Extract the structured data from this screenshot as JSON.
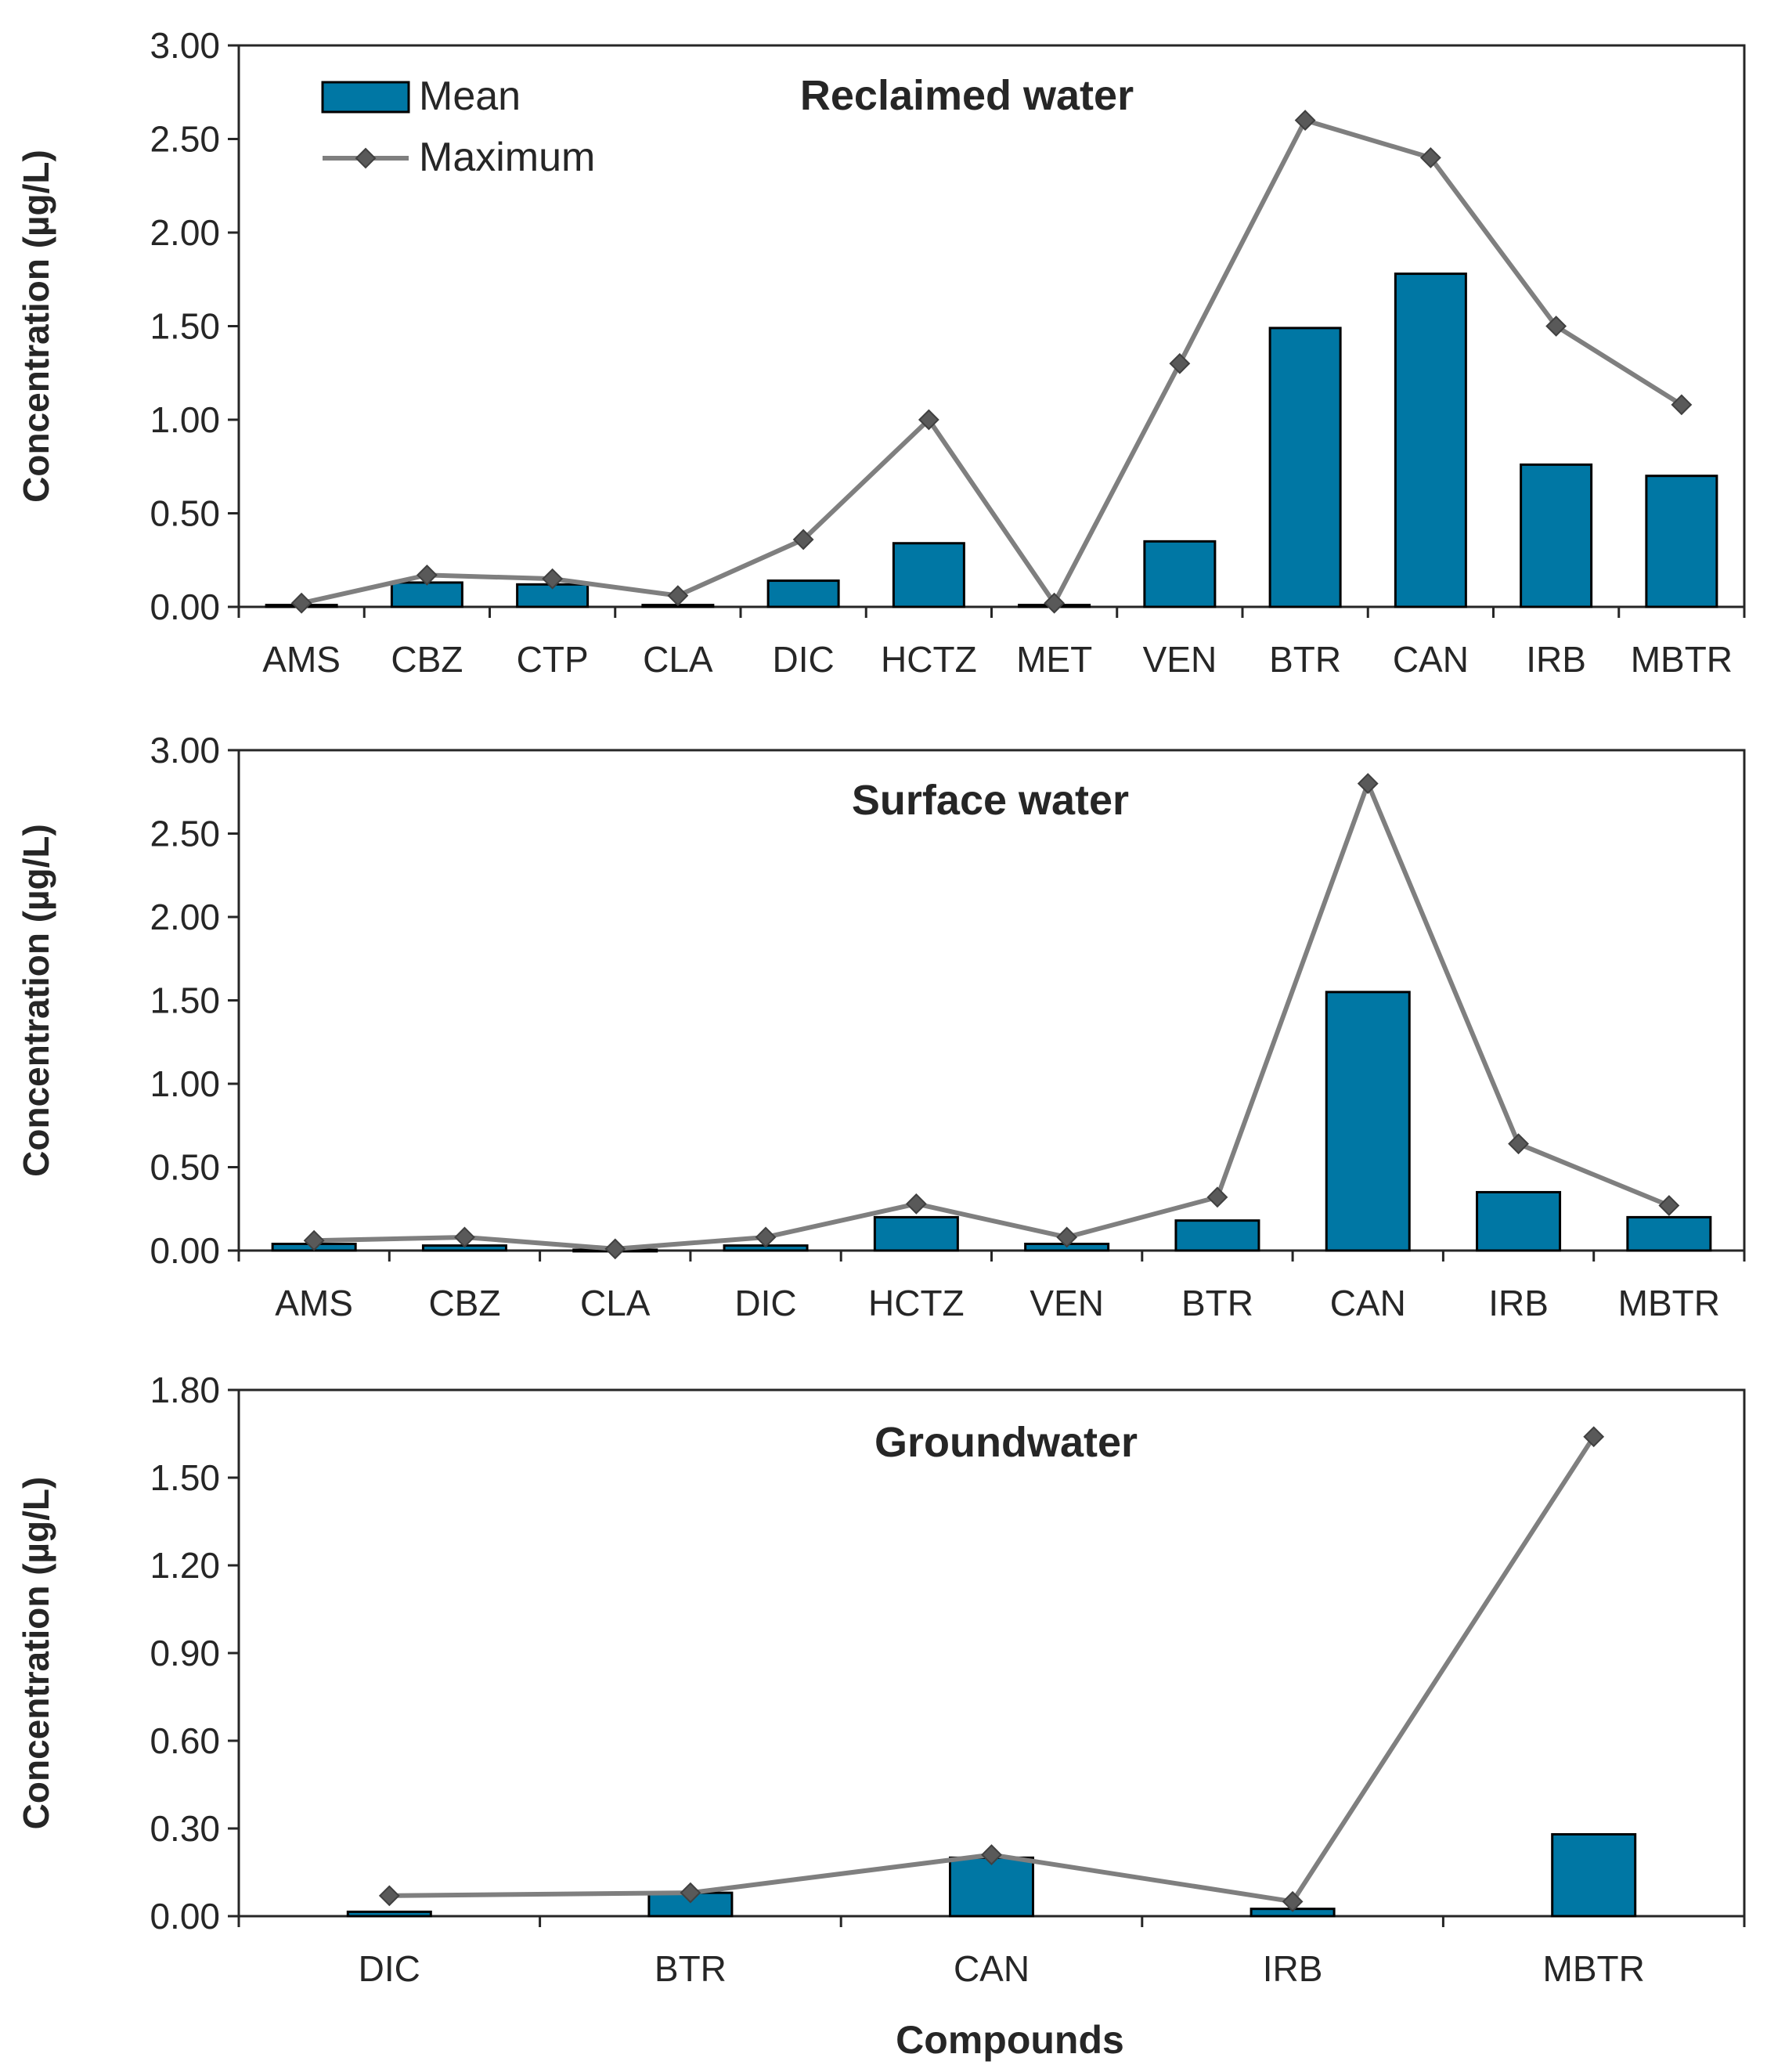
{
  "colors": {
    "bar_fill": "#0077A4",
    "bar_stroke": "#000000",
    "line": "#7F7F7F",
    "marker": "#595959",
    "axis": "#262626"
  },
  "legend": {
    "mean_label": "Mean",
    "max_label": "Maximum"
  },
  "x_title": "Compounds",
  "chart_data": [
    {
      "type": "bar+line",
      "title": "Reclaimed water",
      "ylabel": "Concentration (µg/L)",
      "ylim": [
        0,
        3.0
      ],
      "yticks": [
        "0.00",
        "0.50",
        "1.00",
        "1.50",
        "2.00",
        "2.50",
        "3.00"
      ],
      "categories": [
        "AMS",
        "CBZ",
        "CTP",
        "CLA",
        "DIC",
        "HCTZ",
        "MET",
        "VEN",
        "BTR",
        "CAN",
        "IRB",
        "MBTR"
      ],
      "series": [
        {
          "name": "Mean",
          "kind": "bar",
          "values": [
            0.01,
            0.13,
            0.12,
            0.01,
            0.14,
            0.34,
            0.01,
            0.35,
            1.49,
            1.78,
            0.76,
            0.7
          ]
        },
        {
          "name": "Maximum",
          "kind": "line",
          "values": [
            0.02,
            0.17,
            0.15,
            0.06,
            0.36,
            1.0,
            0.02,
            1.3,
            2.6,
            2.4,
            1.5,
            1.08
          ]
        }
      ]
    },
    {
      "type": "bar+line",
      "title": "Surface water",
      "ylabel": "Concentration (µg/L)",
      "ylim": [
        0,
        3.0
      ],
      "yticks": [
        "0.00",
        "0.50",
        "1.00",
        "1.50",
        "2.00",
        "2.50",
        "3.00"
      ],
      "categories": [
        "AMS",
        "CBZ",
        "CLA",
        "DIC",
        "HCTZ",
        "VEN",
        "BTR",
        "CAN",
        "IRB",
        "MBTR"
      ],
      "series": [
        {
          "name": "Mean",
          "kind": "bar",
          "values": [
            0.04,
            0.03,
            0.005,
            0.03,
            0.2,
            0.04,
            0.18,
            1.55,
            0.35,
            0.2
          ]
        },
        {
          "name": "Maximum",
          "kind": "line",
          "values": [
            0.06,
            0.08,
            0.01,
            0.08,
            0.28,
            0.08,
            0.32,
            2.8,
            0.64,
            0.27
          ]
        }
      ]
    },
    {
      "type": "bar+line",
      "title": "Groundwater",
      "ylabel": "Concentration (µg/L)",
      "ylim": [
        0,
        1.8
      ],
      "yticks": [
        "0.00",
        "0.30",
        "0.60",
        "0.90",
        "1.20",
        "1.50",
        "1.80"
      ],
      "categories": [
        "DIC",
        "BTR",
        "CAN",
        "IRB",
        "MBTR"
      ],
      "series": [
        {
          "name": "Mean",
          "kind": "bar",
          "values": [
            0.015,
            0.08,
            0.2,
            0.025,
            0.28
          ]
        },
        {
          "name": "Maximum",
          "kind": "line",
          "values": [
            0.07,
            0.08,
            0.21,
            0.05,
            1.64
          ]
        }
      ]
    }
  ]
}
